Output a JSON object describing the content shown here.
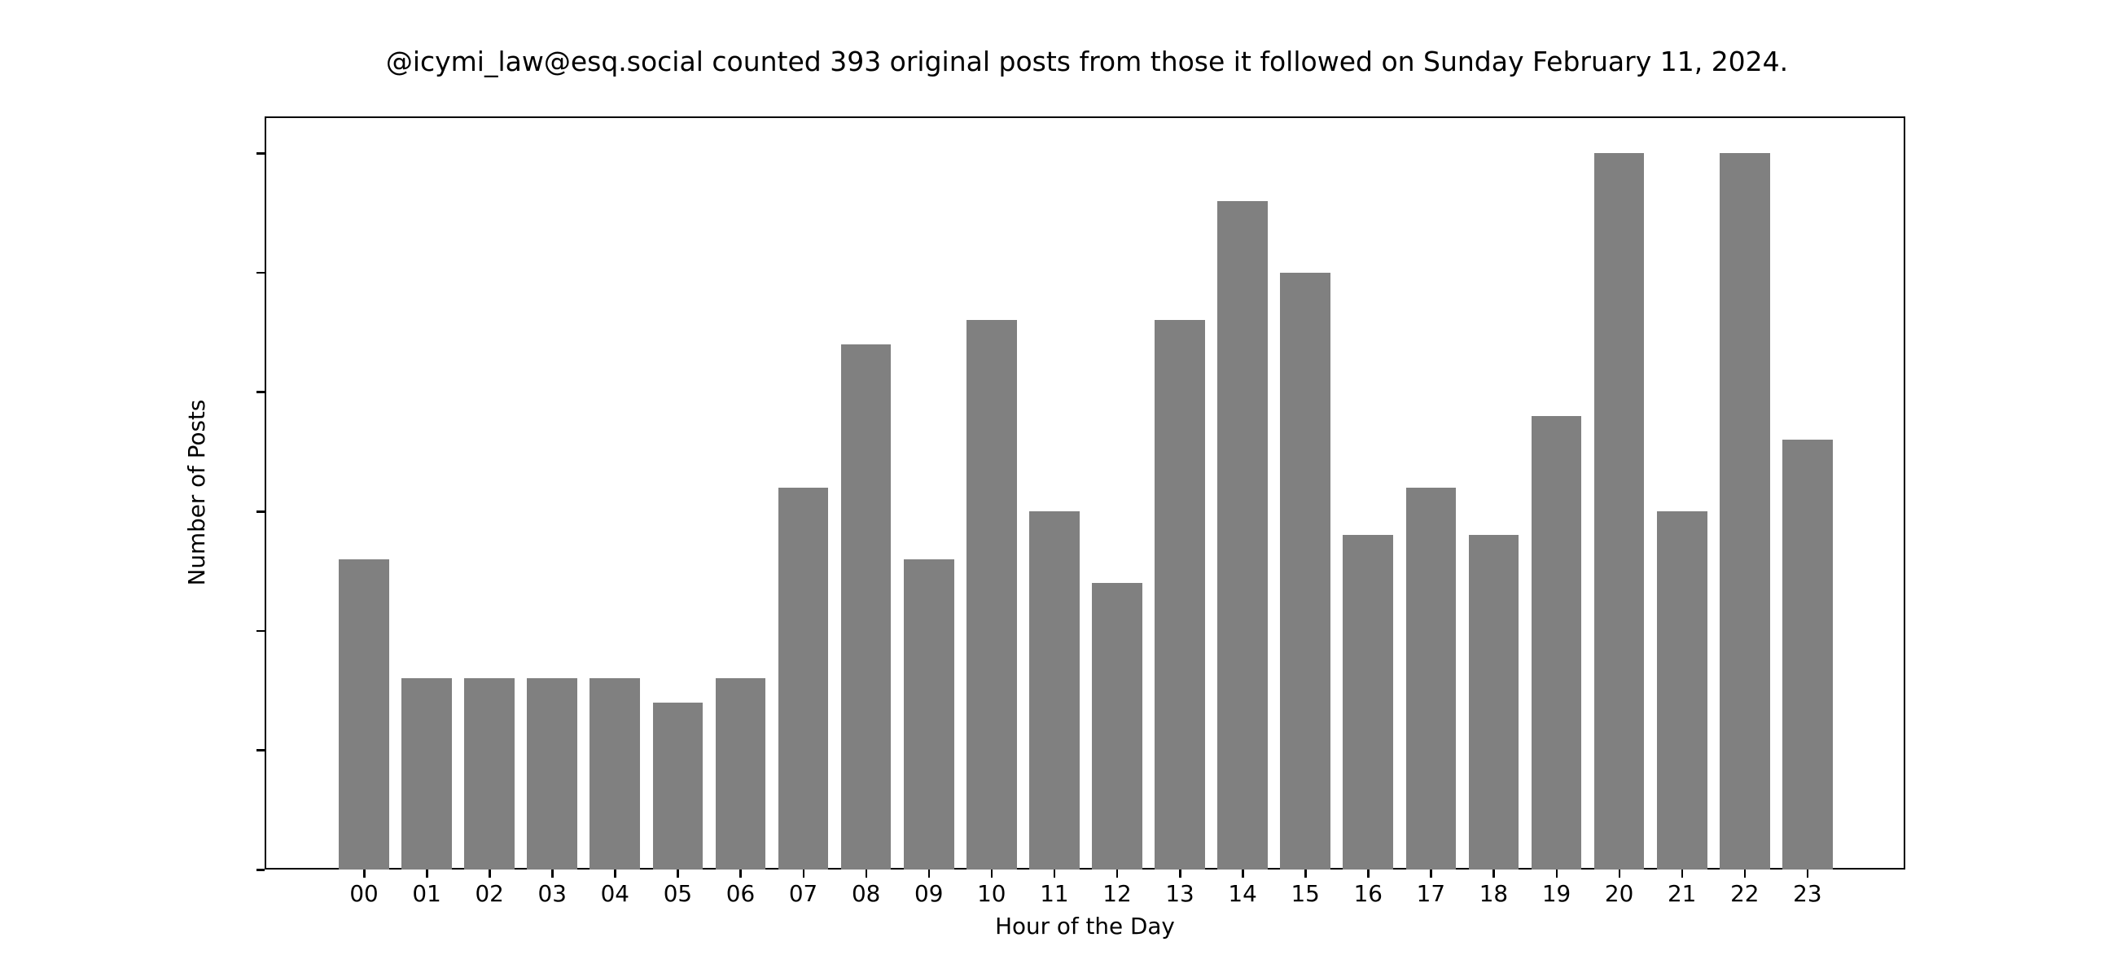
{
  "chart_data": {
    "type": "bar",
    "title": "@icymi_law@esq.social counted 393 original posts from those it followed on Sunday February 11, 2024.",
    "xlabel": "Hour of the Day",
    "ylabel": "Number of Posts",
    "categories": [
      "00",
      "01",
      "02",
      "03",
      "04",
      "05",
      "06",
      "07",
      "08",
      "09",
      "10",
      "11",
      "12",
      "13",
      "14",
      "15",
      "16",
      "17",
      "18",
      "19",
      "20",
      "21",
      "22",
      "23"
    ],
    "values": [
      13,
      8,
      8,
      8,
      8,
      7,
      8,
      16,
      22,
      13,
      23,
      15,
      12,
      23,
      28,
      25,
      14,
      16,
      14,
      19,
      30,
      15,
      30,
      18
    ],
    "ylim": [
      0,
      31.5
    ],
    "yticks": [
      0,
      5,
      10,
      15,
      20,
      25,
      30
    ],
    "grid": false,
    "legend": null,
    "bar_color": "#808080"
  }
}
